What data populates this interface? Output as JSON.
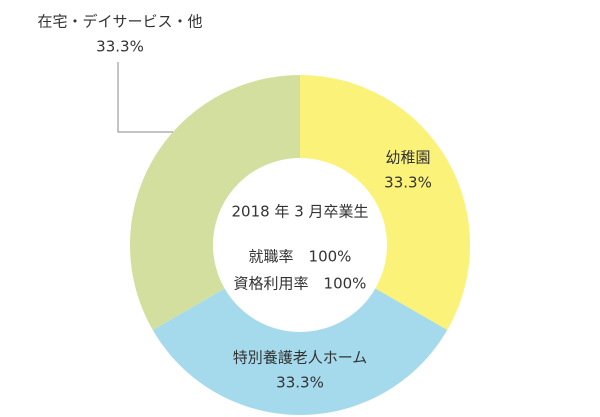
{
  "chart_data": {
    "type": "donut",
    "categories": [
      "幼稚園",
      "特別養護老人ホーム",
      "在宅・デイサービス・他"
    ],
    "values": [
      33.3,
      33.3,
      33.3
    ],
    "value_labels": [
      "33.3%",
      "33.3%",
      "33.3%"
    ],
    "colors": [
      "#fbf27a",
      "#a5daec",
      "#d3df9e"
    ],
    "center_text": [
      "2018 年 3 月卒業生",
      "就職率　100%",
      "資格利用率　100%"
    ]
  }
}
